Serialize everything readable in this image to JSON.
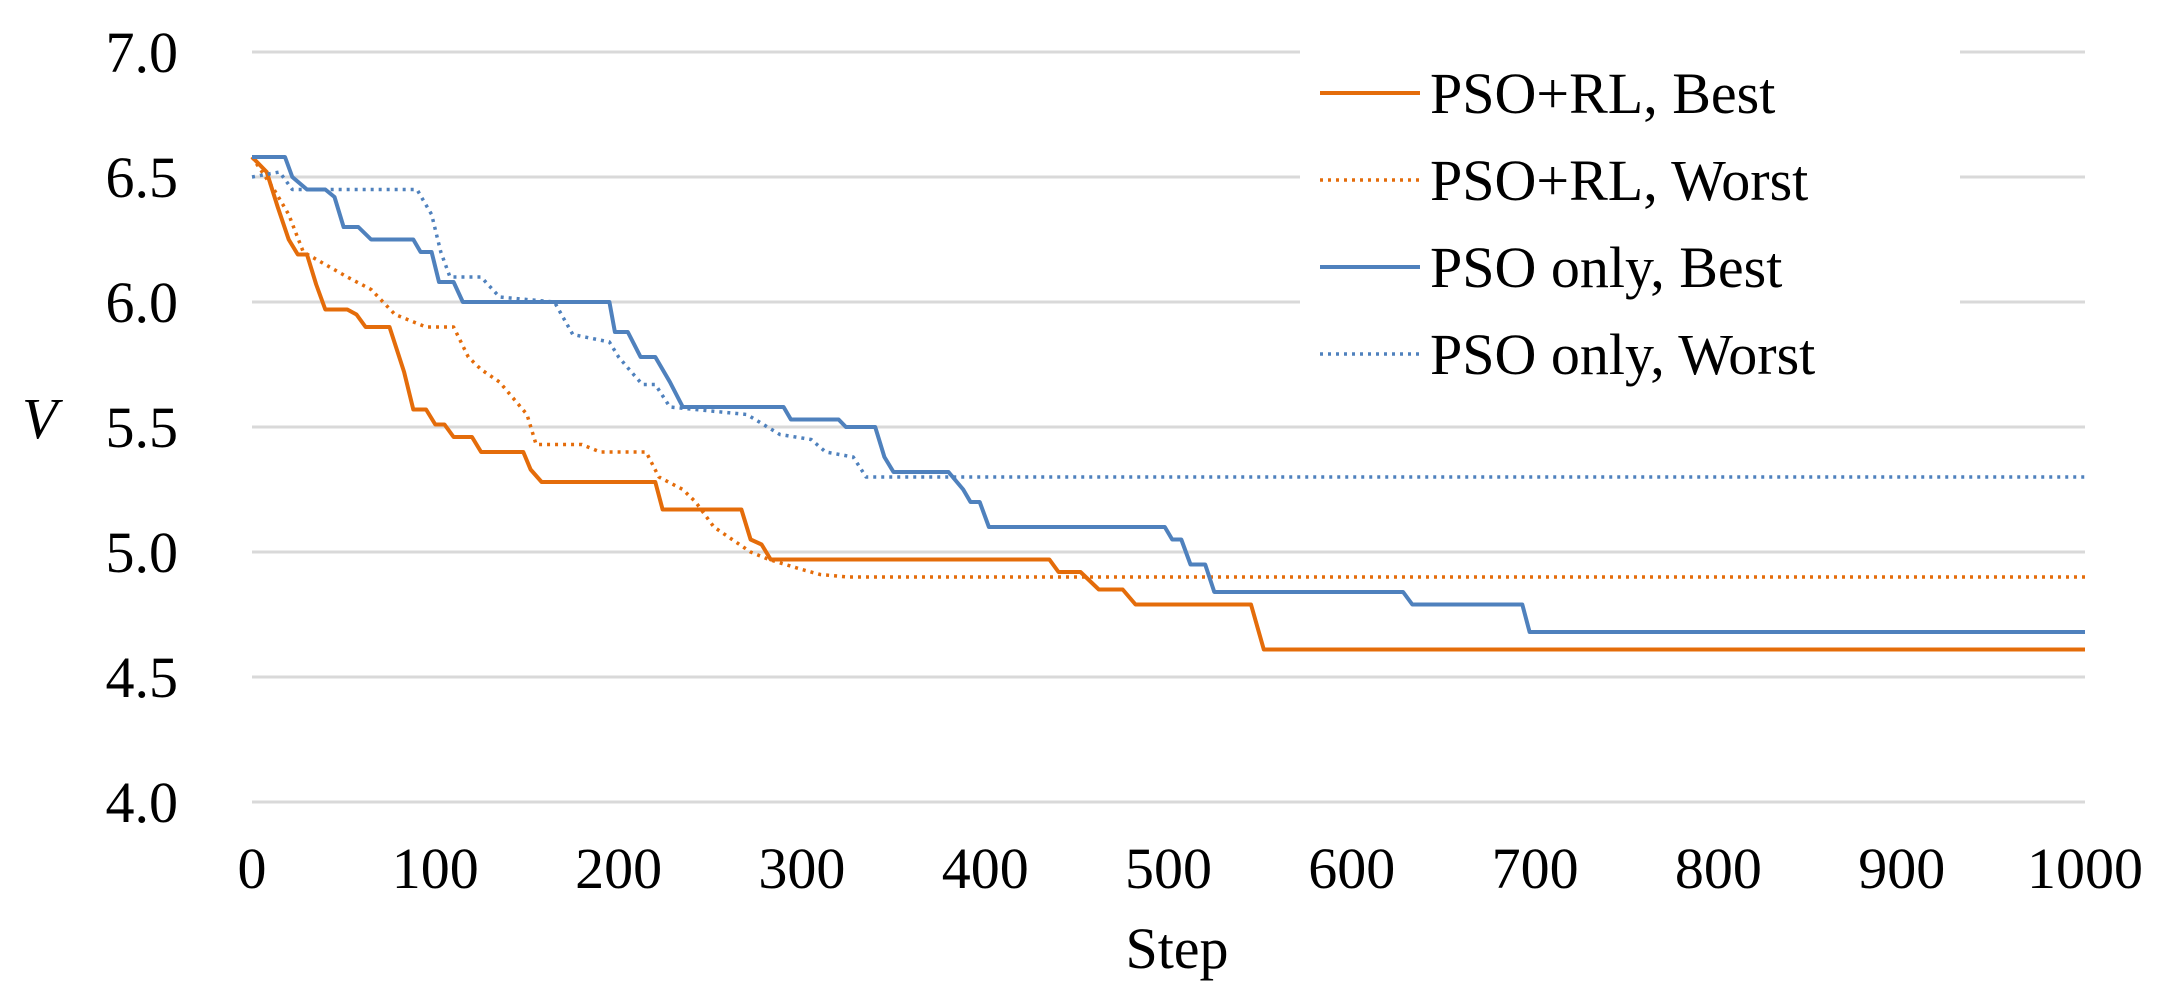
{
  "chart_data": {
    "type": "line",
    "title": "",
    "xlabel": "Step",
    "ylabel": "V",
    "xlim": [
      0,
      1000
    ],
    "ylim": [
      4.0,
      7.0
    ],
    "x_ticks": [
      0,
      100,
      200,
      300,
      400,
      500,
      600,
      700,
      800,
      900,
      1000
    ],
    "x_tick_labels": [
      "0",
      "100",
      "200",
      "300",
      "400",
      "500",
      "600",
      "700",
      "800",
      "900",
      "1000"
    ],
    "y_ticks": [
      4.0,
      4.5,
      5.0,
      5.5,
      6.0,
      6.5,
      7.0
    ],
    "y_tick_labels": [
      "4.0",
      "4.5",
      "5.0",
      "5.5",
      "6.0",
      "6.5",
      "7.0"
    ],
    "grid": "horizontal",
    "legend": "top-right",
    "series": [
      {
        "name": "PSO+RL, Best",
        "color": "#E46C0A",
        "dash": "solid",
        "points": [
          [
            0,
            6.58
          ],
          [
            8,
            6.52
          ],
          [
            14,
            6.38
          ],
          [
            20,
            6.25
          ],
          [
            25,
            6.19
          ],
          [
            30,
            6.19
          ],
          [
            35,
            6.07
          ],
          [
            40,
            5.97
          ],
          [
            52,
            5.97
          ],
          [
            57,
            5.95
          ],
          [
            62,
            5.9
          ],
          [
            75,
            5.9
          ],
          [
            83,
            5.72
          ],
          [
            88,
            5.57
          ],
          [
            95,
            5.57
          ],
          [
            100,
            5.51
          ],
          [
            105,
            5.51
          ],
          [
            110,
            5.46
          ],
          [
            120,
            5.46
          ],
          [
            125,
            5.4
          ],
          [
            148,
            5.4
          ],
          [
            152,
            5.33
          ],
          [
            158,
            5.28
          ],
          [
            220,
            5.28
          ],
          [
            224,
            5.17
          ],
          [
            245,
            5.17
          ],
          [
            250,
            5.17
          ],
          [
            267,
            5.17
          ],
          [
            272,
            5.05
          ],
          [
            278,
            5.03
          ],
          [
            283,
            4.97
          ],
          [
            435,
            4.97
          ],
          [
            440,
            4.92
          ],
          [
            452,
            4.92
          ],
          [
            462,
            4.85
          ],
          [
            475,
            4.85
          ],
          [
            482,
            4.79
          ],
          [
            545,
            4.79
          ],
          [
            552,
            4.61
          ],
          [
            1000,
            4.61
          ]
        ]
      },
      {
        "name": "PSO+RL, Worst",
        "color": "#E46C0A",
        "dash": "dotted",
        "points": [
          [
            0,
            6.58
          ],
          [
            12,
            6.45
          ],
          [
            20,
            6.35
          ],
          [
            28,
            6.2
          ],
          [
            40,
            6.15
          ],
          [
            52,
            6.1
          ],
          [
            65,
            6.05
          ],
          [
            78,
            5.95
          ],
          [
            95,
            5.9
          ],
          [
            110,
            5.9
          ],
          [
            118,
            5.78
          ],
          [
            125,
            5.73
          ],
          [
            135,
            5.68
          ],
          [
            150,
            5.55
          ],
          [
            155,
            5.43
          ],
          [
            180,
            5.43
          ],
          [
            190,
            5.4
          ],
          [
            215,
            5.4
          ],
          [
            222,
            5.3
          ],
          [
            235,
            5.25
          ],
          [
            242,
            5.2
          ],
          [
            252,
            5.1
          ],
          [
            262,
            5.05
          ],
          [
            272,
            5.0
          ],
          [
            282,
            4.97
          ],
          [
            300,
            4.93
          ],
          [
            310,
            4.91
          ],
          [
            325,
            4.9
          ],
          [
            1000,
            4.9
          ]
        ]
      },
      {
        "name": "PSO only, Best",
        "color": "#4F81BD",
        "dash": "solid",
        "points": [
          [
            0,
            6.58
          ],
          [
            18,
            6.58
          ],
          [
            22,
            6.5
          ],
          [
            30,
            6.45
          ],
          [
            40,
            6.45
          ],
          [
            45,
            6.42
          ],
          [
            50,
            6.3
          ],
          [
            58,
            6.3
          ],
          [
            65,
            6.25
          ],
          [
            88,
            6.25
          ],
          [
            92,
            6.2
          ],
          [
            98,
            6.2
          ],
          [
            102,
            6.08
          ],
          [
            110,
            6.08
          ],
          [
            115,
            6.0
          ],
          [
            195,
            6.0
          ],
          [
            198,
            5.88
          ],
          [
            205,
            5.88
          ],
          [
            212,
            5.78
          ],
          [
            220,
            5.78
          ],
          [
            228,
            5.68
          ],
          [
            235,
            5.58
          ],
          [
            290,
            5.58
          ],
          [
            294,
            5.53
          ],
          [
            320,
            5.53
          ],
          [
            324,
            5.5
          ],
          [
            340,
            5.5
          ],
          [
            345,
            5.38
          ],
          [
            350,
            5.32
          ],
          [
            380,
            5.32
          ],
          [
            388,
            5.25
          ],
          [
            392,
            5.2
          ],
          [
            397,
            5.2
          ],
          [
            402,
            5.1
          ],
          [
            498,
            5.1
          ],
          [
            502,
            5.05
          ],
          [
            507,
            5.05
          ],
          [
            512,
            4.95
          ],
          [
            520,
            4.95
          ],
          [
            525,
            4.84
          ],
          [
            628,
            4.84
          ],
          [
            633,
            4.79
          ],
          [
            693,
            4.79
          ],
          [
            697,
            4.68
          ],
          [
            1000,
            4.68
          ]
        ]
      },
      {
        "name": "PSO only, Worst",
        "color": "#4F81BD",
        "dash": "dotted",
        "points": [
          [
            0,
            6.5
          ],
          [
            15,
            6.52
          ],
          [
            22,
            6.45
          ],
          [
            90,
            6.45
          ],
          [
            98,
            6.35
          ],
          [
            103,
            6.2
          ],
          [
            108,
            6.1
          ],
          [
            125,
            6.1
          ],
          [
            135,
            6.02
          ],
          [
            165,
            6.0
          ],
          [
            175,
            5.87
          ],
          [
            195,
            5.84
          ],
          [
            200,
            5.78
          ],
          [
            207,
            5.72
          ],
          [
            213,
            5.67
          ],
          [
            220,
            5.67
          ],
          [
            228,
            5.58
          ],
          [
            270,
            5.55
          ],
          [
            288,
            5.47
          ],
          [
            305,
            5.45
          ],
          [
            313,
            5.4
          ],
          [
            328,
            5.38
          ],
          [
            335,
            5.3
          ],
          [
            1000,
            5.3
          ]
        ]
      }
    ]
  }
}
